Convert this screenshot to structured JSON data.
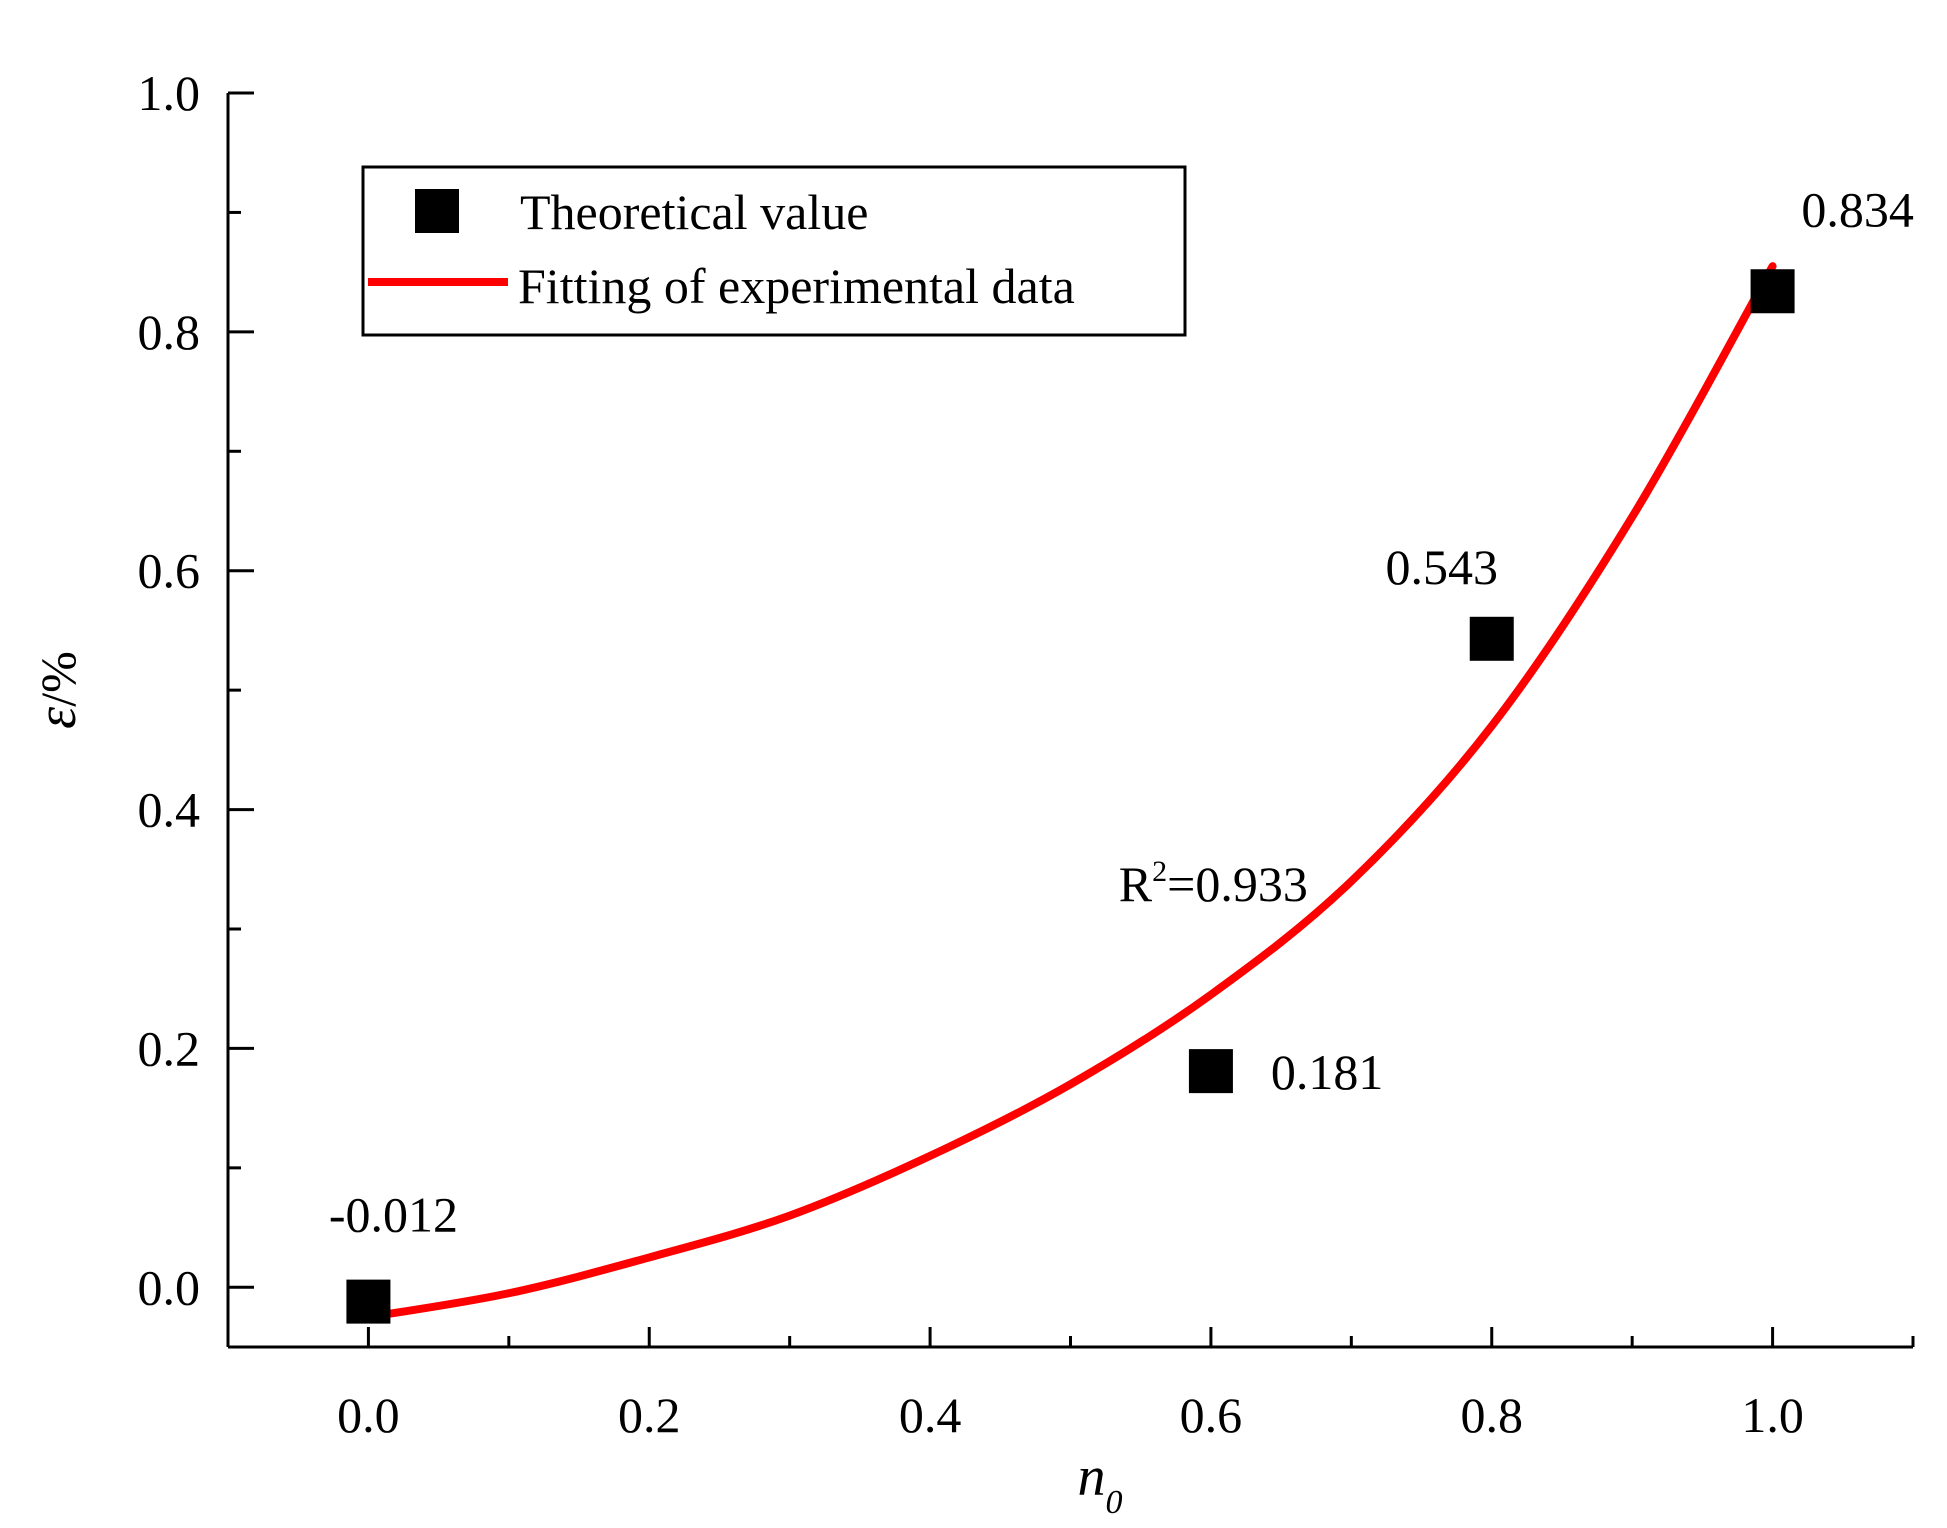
{
  "chart_data": {
    "type": "scatter",
    "title": "",
    "xlabel": {
      "symbol": "n",
      "subscript": "0"
    },
    "ylabel": {
      "symbol": "ε",
      "unit": "/%"
    },
    "xlim": [
      -0.1,
      1.1
    ],
    "ylim": [
      -0.05,
      1.0
    ],
    "x_ticks": [
      "0.0",
      "0.2",
      "0.4",
      "0.6",
      "0.8",
      "1.0"
    ],
    "x_tick_values": [
      0.0,
      0.2,
      0.4,
      0.6,
      0.8,
      1.0
    ],
    "y_ticks": [
      "0.0",
      "0.2",
      "0.4",
      "0.6",
      "0.8",
      "1.0"
    ],
    "y_tick_values": [
      0.0,
      0.2,
      0.4,
      0.6,
      0.8,
      1.0
    ],
    "series": [
      {
        "name": "Theoretical value",
        "kind": "scatter",
        "marker": "square",
        "color": "#000000",
        "x": [
          0.0,
          0.6,
          0.8,
          1.0
        ],
        "y": [
          -0.012,
          0.181,
          0.543,
          0.834
        ],
        "labels": [
          "-0.012",
          "0.181",
          "0.543",
          "0.834"
        ]
      },
      {
        "name": "Fitting of experimental data",
        "kind": "line",
        "color": "#ff0000",
        "x": [
          0.0,
          0.1,
          0.2,
          0.3,
          0.4,
          0.5,
          0.6,
          0.7,
          0.8,
          0.9,
          1.0
        ],
        "y": [
          -0.025,
          -0.005,
          0.025,
          0.06,
          0.11,
          0.17,
          0.245,
          0.34,
          0.47,
          0.645,
          0.855
        ]
      }
    ],
    "legend_position": "top-left",
    "annotation": {
      "base": "R",
      "sup": "2",
      "rest": "=0.933",
      "x": 0.57,
      "y": 0.34
    },
    "grid": false
  }
}
